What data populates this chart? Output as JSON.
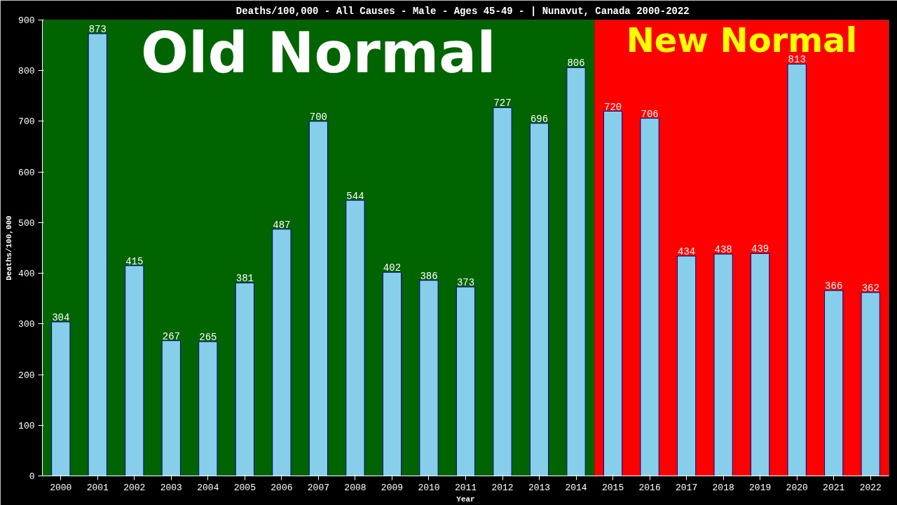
{
  "chart_data": {
    "type": "bar",
    "title": "Deaths/100,000 - All Causes - Male - Ages 45-49 -  | Nunavut, Canada 2000-2022",
    "xlabel": "Year",
    "ylabel": "Deaths/100,000",
    "categories": [
      "2000",
      "2001",
      "2002",
      "2003",
      "2004",
      "2005",
      "2006",
      "2007",
      "2008",
      "2009",
      "2010",
      "2011",
      "2012",
      "2013",
      "2014",
      "2015",
      "2016",
      "2017",
      "2018",
      "2019",
      "2020",
      "2021",
      "2022"
    ],
    "values": [
      304,
      873,
      415,
      267,
      265,
      381,
      487,
      700,
      544,
      402,
      386,
      373,
      727,
      696,
      806,
      720,
      706,
      434,
      438,
      439,
      813,
      366,
      362
    ],
    "color": "#87ceeb",
    "data_labels": true,
    "ylim": [
      0,
      900
    ],
    "yticks": [
      0,
      100,
      200,
      300,
      400,
      500,
      600,
      700,
      800,
      900
    ],
    "grid": false,
    "bands": [
      {
        "axis": "x",
        "from": "2000",
        "to": "2014",
        "label": "Old Normal",
        "color": "#006400"
      },
      {
        "axis": "x",
        "from": "2015",
        "to": "2022",
        "label": "New Normal",
        "color": "#ff0000"
      }
    ]
  }
}
